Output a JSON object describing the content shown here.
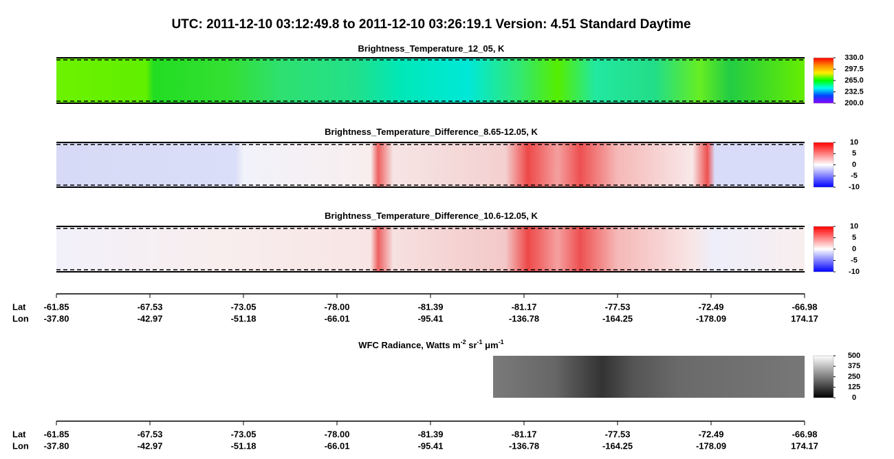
{
  "title": "UTC:  2011-12-10   03:12:49.8  to  2011-12-10   03:26:19.1    Version: 4.51  Standard Daytime",
  "chart_data": [
    {
      "type": "heatmap",
      "title": [
        "Brightness_Temperature_12_05, K"
      ],
      "zlim": [
        200,
        330
      ],
      "colorscale": [
        "#ff0000",
        "#ff8800",
        "#ffee00",
        "#00ff00",
        "#00ffee",
        "#0044ff",
        "#8800ff"
      ],
      "zticks": [
        {
          "value": 330,
          "label": "330.0"
        },
        {
          "value": 297.5,
          "label": "297.5"
        },
        {
          "value": 265,
          "label": "265.0"
        },
        {
          "value": 232.5,
          "label": "232.5"
        },
        {
          "value": 200,
          "label": "200.0"
        }
      ]
    },
    {
      "type": "heatmap",
      "title": [
        "Brightness_Temperature_Difference_8.65-12.05, K"
      ],
      "zlim": [
        -10,
        10
      ],
      "colorscale": [
        "#ff0000",
        "#ffffff",
        "#0000ff"
      ],
      "zticks": [
        10,
        5,
        0,
        -5,
        -10
      ]
    },
    {
      "type": "heatmap",
      "title": [
        "Brightness_Temperature_Difference_10.6-12.05, K"
      ],
      "zlim": [
        -10,
        10
      ],
      "colorscale": [
        "#ff0000",
        "#ffffff",
        "#0000ff"
      ],
      "zticks": [
        10,
        5,
        0,
        -5,
        -10
      ]
    },
    {
      "type": "heatmap",
      "title": [
        "WFC Radiance, Watts m",
        "-2",
        " sr",
        "-1",
        " μm",
        "-1"
      ],
      "zlim": [
        0,
        500
      ],
      "colorscale": [
        "#ffffff",
        "#000000"
      ],
      "zticks": [
        500,
        375,
        250,
        125,
        0
      ]
    }
  ],
  "axes": [
    {
      "lat_label": "Lat",
      "lon_label": "Lon",
      "lat": [
        -61.85,
        -67.53,
        -73.05,
        {
          "value": -78,
          "label": "-78.00"
        },
        -81.39,
        -81.17,
        -77.53,
        -72.49,
        -66.98
      ],
      "lon": [
        {
          "value": -37.8,
          "label": "-37.80"
        },
        -42.97,
        -51.18,
        -66.01,
        -95.41,
        -136.78,
        -164.25,
        -178.09,
        174.17
      ]
    },
    {
      "lat_label": "Lat",
      "lon_label": "Lon",
      "lat": [
        -61.85,
        -67.53,
        -73.05,
        {
          "value": -78,
          "label": "-78.00"
        },
        -81.39,
        -81.17,
        -77.53,
        -72.49,
        -66.98
      ],
      "lon": [
        {
          "value": -37.8,
          "label": "-37.80"
        },
        -42.97,
        -51.18,
        -66.01,
        -95.41,
        -136.78,
        -164.25,
        -178.09,
        174.17
      ]
    }
  ]
}
